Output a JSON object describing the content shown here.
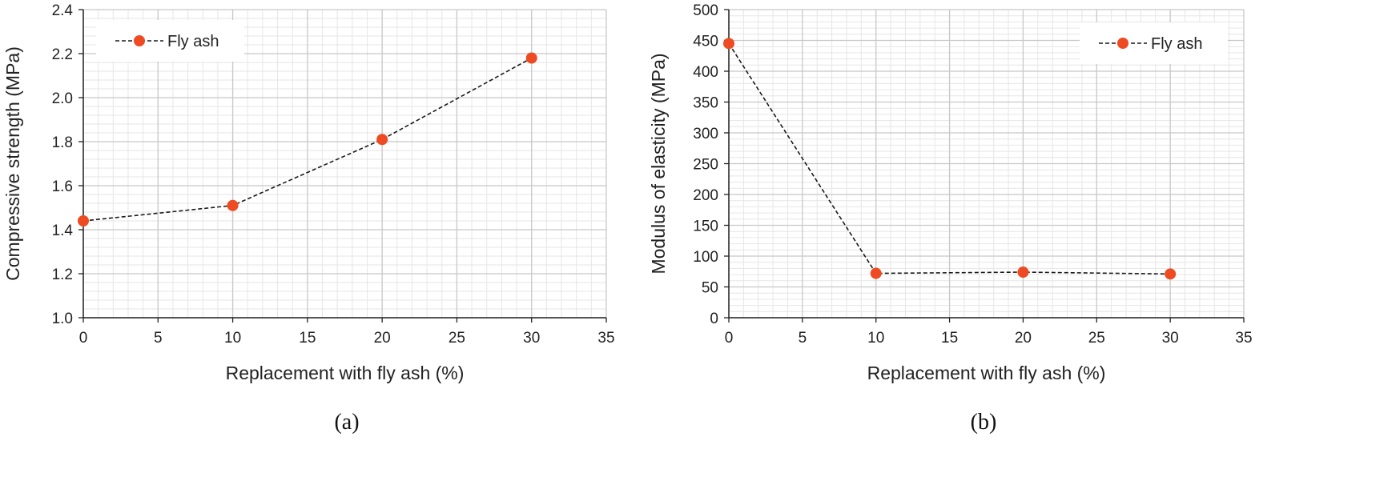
{
  "colors": {
    "marker": "#ee4b22",
    "line": "#1a1a1a",
    "major_grid": "#c8c8c8",
    "minor_grid": "#e6e6e6"
  },
  "chart_data": [
    {
      "type": "line",
      "caption": "(a)",
      "xlabel": "Replacement with fly ash (%)",
      "ylabel": "Compressive strength (MPa)",
      "xlim": [
        0,
        35
      ],
      "ylim": [
        1.0,
        2.4
      ],
      "xticks": [
        0,
        5,
        10,
        15,
        20,
        25,
        30,
        35
      ],
      "yticks": [
        "1.0",
        "1.2",
        "1.4",
        "1.6",
        "1.8",
        "2.0",
        "2.2",
        "2.4"
      ],
      "grid": true,
      "legend_position": "top-left",
      "series": [
        {
          "name": "Fly ash",
          "x": [
            0,
            10,
            20,
            30
          ],
          "y": [
            1.44,
            1.51,
            1.81,
            2.18
          ]
        }
      ]
    },
    {
      "type": "line",
      "caption": "(b)",
      "xlabel": "Replacement with fly ash (%)",
      "ylabel": "Modulus of elasticity (MPa)",
      "xlim": [
        0,
        35
      ],
      "ylim": [
        0,
        500
      ],
      "xticks": [
        0,
        5,
        10,
        15,
        20,
        25,
        30,
        35
      ],
      "yticks": [
        "0",
        "50",
        "100",
        "150",
        "200",
        "250",
        "300",
        "350",
        "400",
        "450",
        "500"
      ],
      "grid": true,
      "legend_position": "top-right",
      "series": [
        {
          "name": "Fly ash",
          "x": [
            0,
            10,
            20,
            30
          ],
          "y": [
            445,
            72,
            74,
            71
          ]
        }
      ]
    }
  ]
}
